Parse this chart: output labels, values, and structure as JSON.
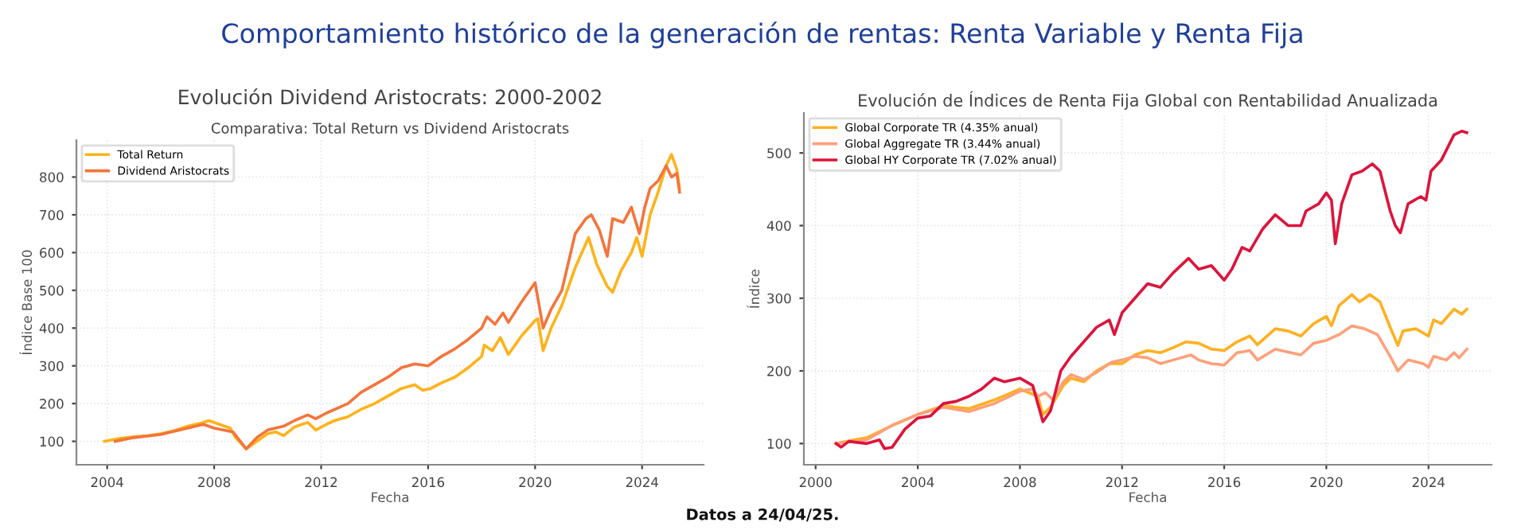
{
  "chart_data": [
    {
      "type": "line",
      "title": "Evolución Dividend Aristocrats: 2000-2002",
      "subtitle": "Comparativa: Total Return vs Dividend Aristocrats",
      "xlabel": "Fecha",
      "ylabel": "Índice Base 100",
      "annotations": [
        "Comportamiento histórico de la generación de rentas: Renta Variable y Renta Fija",
        "Datos a 24/04/25."
      ],
      "xlim": [
        2002.85,
        2026.3
      ],
      "ylim": [
        38,
        898
      ],
      "xticks": [
        2004,
        2008,
        2012,
        2016,
        2020,
        2024
      ],
      "yticks": [
        100,
        200,
        300,
        400,
        500,
        600,
        700,
        800
      ],
      "grid": true,
      "legend": "top left",
      "series": [
        {
          "name": "Total Return",
          "color": "#ffb21a",
          "x": [
            2003.9,
            2004.5,
            2005,
            2005.5,
            2006,
            2006.5,
            2007,
            2007.5,
            2007.8,
            2008.2,
            2008.6,
            2008.8,
            2009.2,
            2009.6,
            2010,
            2010.3,
            2010.6,
            2011,
            2011.5,
            2011.8,
            2012.2,
            2012.5,
            2013,
            2013.5,
            2014,
            2014.5,
            2015,
            2015.5,
            2015.8,
            2016.1,
            2016.5,
            2017,
            2017.5,
            2018,
            2018.1,
            2018.4,
            2018.7,
            2019,
            2019.5,
            2020,
            2020.1,
            2020.3,
            2020.6,
            2021,
            2021.2,
            2021.5,
            2022,
            2022.3,
            2022.7,
            2022.9,
            2023.2,
            2023.6,
            2023.8,
            2024,
            2024.3,
            2024.6,
            2024.9,
            2025.1,
            2025.3,
            2025.4
          ],
          "values": [
            100,
            108,
            112,
            115,
            120,
            128,
            140,
            148,
            155,
            145,
            135,
            110,
            80,
            100,
            120,
            125,
            115,
            138,
            150,
            130,
            145,
            155,
            165,
            185,
            200,
            220,
            240,
            250,
            235,
            240,
            255,
            270,
            295,
            325,
            355,
            340,
            375,
            330,
            380,
            420,
            425,
            340,
            400,
            460,
            500,
            560,
            640,
            570,
            510,
            495,
            550,
            600,
            640,
            590,
            700,
            760,
            830,
            860,
            820,
            770
          ]
        },
        {
          "name": "Dividend Aristocrats",
          "color": "#f4743b",
          "x": [
            2004.3,
            2005,
            2006,
            2007,
            2007.6,
            2008,
            2008.7,
            2009.2,
            2009.6,
            2010,
            2010.6,
            2011,
            2011.5,
            2011.8,
            2012.2,
            2013,
            2013.5,
            2014,
            2014.5,
            2015,
            2015.5,
            2016,
            2016.5,
            2017,
            2017.5,
            2018,
            2018.2,
            2018.5,
            2018.8,
            2019,
            2019.5,
            2020,
            2020.3,
            2020.6,
            2021,
            2021.2,
            2021.5,
            2021.9,
            2022.1,
            2022.4,
            2022.7,
            2022.9,
            2023.3,
            2023.6,
            2023.9,
            2024.1,
            2024.3,
            2024.6,
            2024.9,
            2025.1,
            2025.3,
            2025.4
          ],
          "values": [
            100,
            110,
            118,
            135,
            145,
            135,
            125,
            80,
            110,
            130,
            140,
            155,
            170,
            160,
            175,
            200,
            230,
            250,
            270,
            295,
            305,
            300,
            325,
            345,
            370,
            400,
            430,
            410,
            440,
            415,
            470,
            520,
            400,
            450,
            500,
            560,
            650,
            690,
            700,
            660,
            590,
            690,
            680,
            720,
            650,
            720,
            770,
            790,
            830,
            800,
            810,
            760
          ]
        }
      ]
    },
    {
      "type": "line",
      "title": "Evolución de Índices de Renta Fija Global con Rentabilidad Anualizada",
      "xlabel": "Fecha",
      "ylabel": "Índice",
      "xlim": [
        1999.54,
        2026.47
      ],
      "ylim": [
        70.8,
        555
      ],
      "xticks": [
        2000,
        2004,
        2008,
        2012,
        2016,
        2020,
        2024
      ],
      "yticks": [
        100,
        200,
        300,
        400,
        500
      ],
      "grid": true,
      "legend": "top left",
      "series": [
        {
          "name": "Global Corporate TR (4.35% anual)",
          "color": "#ffb020",
          "x": [
            2000.8,
            2001.5,
            2002,
            2003,
            2004,
            2005,
            2006,
            2007,
            2008,
            2008.7,
            2008.9,
            2009.2,
            2009.7,
            2010,
            2010.5,
            2011,
            2011.5,
            2012,
            2012.5,
            2013,
            2013.5,
            2014,
            2014.5,
            2015,
            2015.5,
            2016,
            2016.5,
            2017,
            2017.3,
            2018,
            2018.5,
            2019,
            2019.5,
            2020,
            2020.2,
            2020.5,
            2021,
            2021.3,
            2021.7,
            2022.1,
            2022.5,
            2022.8,
            2023,
            2023.5,
            2024,
            2024.2,
            2024.5,
            2025,
            2025.3,
            2025.5
          ],
          "values": [
            100,
            105,
            108,
            125,
            140,
            152,
            148,
            160,
            175,
            165,
            140,
            150,
            180,
            190,
            185,
            200,
            210,
            210,
            222,
            228,
            225,
            232,
            240,
            238,
            230,
            228,
            240,
            248,
            236,
            258,
            255,
            248,
            265,
            275,
            262,
            290,
            305,
            295,
            305,
            295,
            260,
            235,
            255,
            258,
            248,
            270,
            265,
            285,
            278,
            285
          ]
        },
        {
          "name": "Global Aggregate TR (3.44% anual)",
          "color": "#ffa07a",
          "x": [
            2000.8,
            2002,
            2003,
            2004,
            2005,
            2006,
            2007,
            2008,
            2008.5,
            2008.7,
            2009,
            2009.3,
            2009.7,
            2010,
            2010.5,
            2011,
            2011.6,
            2012,
            2012.5,
            2013,
            2013.5,
            2014,
            2014.7,
            2015,
            2015.5,
            2016,
            2016.5,
            2017,
            2017.3,
            2018,
            2019,
            2019.5,
            2020,
            2020.5,
            2021,
            2021.5,
            2022,
            2022.5,
            2022.8,
            2023.2,
            2023.8,
            2024,
            2024.2,
            2024.7,
            2025,
            2025.2,
            2025.5
          ],
          "values": [
            100,
            105,
            125,
            140,
            150,
            144,
            155,
            172,
            175,
            165,
            170,
            160,
            185,
            195,
            188,
            198,
            212,
            215,
            220,
            218,
            210,
            215,
            222,
            215,
            210,
            208,
            225,
            228,
            215,
            230,
            222,
            238,
            242,
            250,
            262,
            258,
            250,
            220,
            200,
            215,
            210,
            205,
            220,
            215,
            225,
            218,
            230
          ]
        },
        {
          "name": "Global HY Corporate TR (7.02% anual)",
          "color": "#dc143c",
          "x": [
            2000.8,
            2001,
            2001.3,
            2002,
            2002.5,
            2002.7,
            2003,
            2003.5,
            2004,
            2004.5,
            2005,
            2005.5,
            2006,
            2006.5,
            2007,
            2007.4,
            2008,
            2008.5,
            2008.9,
            2009.2,
            2009.6,
            2010,
            2010.5,
            2011,
            2011.5,
            2011.7,
            2012,
            2012.5,
            2013,
            2013.5,
            2014,
            2014.6,
            2015,
            2015.5,
            2016,
            2016.3,
            2016.7,
            2017,
            2017.5,
            2018,
            2018.5,
            2019,
            2019.2,
            2019.7,
            2020,
            2020.2,
            2020.35,
            2020.6,
            2021,
            2021.4,
            2021.8,
            2022.1,
            2022.5,
            2022.7,
            2022.9,
            2023.2,
            2023.7,
            2023.9,
            2024.1,
            2024.5,
            2025,
            2025.3,
            2025.5
          ],
          "values": [
            100,
            95,
            103,
            100,
            105,
            93,
            95,
            120,
            135,
            138,
            155,
            158,
            165,
            175,
            190,
            185,
            190,
            180,
            130,
            145,
            200,
            220,
            240,
            260,
            270,
            250,
            280,
            300,
            320,
            315,
            335,
            355,
            340,
            345,
            325,
            340,
            370,
            365,
            395,
            415,
            400,
            400,
            420,
            430,
            445,
            435,
            375,
            430,
            470,
            475,
            485,
            475,
            420,
            400,
            390,
            430,
            440,
            435,
            475,
            490,
            525,
            530,
            528
          ]
        }
      ]
    }
  ]
}
